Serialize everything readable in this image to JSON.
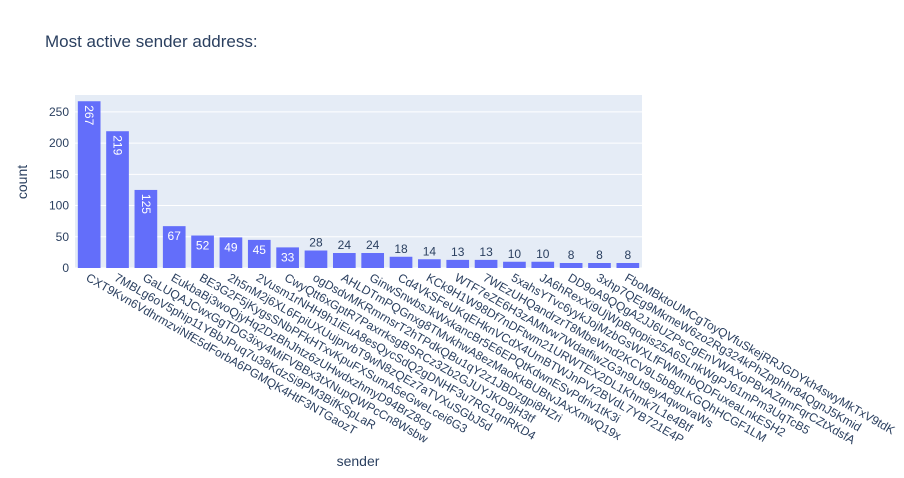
{
  "chart_data": {
    "type": "bar",
    "title": "Most active sender address:",
    "x_label": "sender",
    "y_label": "count",
    "categories": [
      "CXT9Kvn6VdhrmzviNfE5dForbA6PGMQK4HtF3NTGaozT",
      "7MBLg6oV5phip11YBbJPuq7u38KdzSi9PM3BifKSpLaR",
      "GaLUQAJCwxGgTDG3ixy4MiFVBBx3tXNupQWPcCn8Wsbw",
      "EukbaBj3woQjyHq2DzBhJhtz6zUHwdxzhmyD94BrZ8cg",
      "BE3G2F5jKygsSNbPFkHTxvKpuFXSumA5eGweLcei6G3",
      "2h5nM2j6XL6FpiUXUujprvbT9wN8zQEz7aTVXuSGbJ5d",
      "2Vusm1rNHH9h1iEuA8esQycSdQ2gDNHF3u7RG1qnRKD4",
      "CwyQtt6xGptR7PaxrrksgBSRCz3Zb2GJUYJKD9jH3tf",
      "ogDsdvMKRmrnsrT2hTPdkQBu1qY2z1JBDzgpi8HZri",
      "AHLDTmPQGnxg8TMvkhwA8ezMaoKkBUBtvJAxXmwQ19x",
      "GinwSnwbsJkWxkancBr5E6EPQtKdwnESvPdriv1tK3i",
      "Cd4VkSFeUKqEHknVCdX4UmBTWJnPVr2BVdL7YB721E4P",
      "KCk9H1W98Df7nDFtwm21URWTEX2DL1Khmk7L1e4Btf",
      "WTF7eZE6H3zAMtvw7WdatfiwZG3n9Ut9eyAqwovaWs",
      "7WEzUHQandrzrT8MbeWnd2KCV9L5bBgLKGQhHCGF1LM",
      "5xahsYTvc6yykJojMzbGsWXLfFWMmbQDFuxeaLnkESH2",
      "JA6hRexXi9UjWpBqopis25A6SLnkWgPJ61mPm3UqTcB5",
      "DD9oA9QQgA2JJ6UZPsCgEnVWAXoPBvAZqmFqrCZtXdsfA",
      "3xhp7QEg9MkmeW6zo2Rg324kPhZpphhr84QgnJ5Kmid",
      "FboMBktoUMCgToyQVfuSkejRRJGDYkh4swyMkTxV9tdK"
    ],
    "values": [
      267,
      219,
      125,
      67,
      52,
      49,
      45,
      33,
      28,
      24,
      24,
      18,
      14,
      13,
      13,
      10,
      10,
      8,
      8,
      8
    ],
    "color": "#636efa",
    "ylim": [
      0,
      277
    ],
    "yticks": [
      0,
      50,
      100,
      150,
      200,
      250
    ],
    "grid": true
  }
}
